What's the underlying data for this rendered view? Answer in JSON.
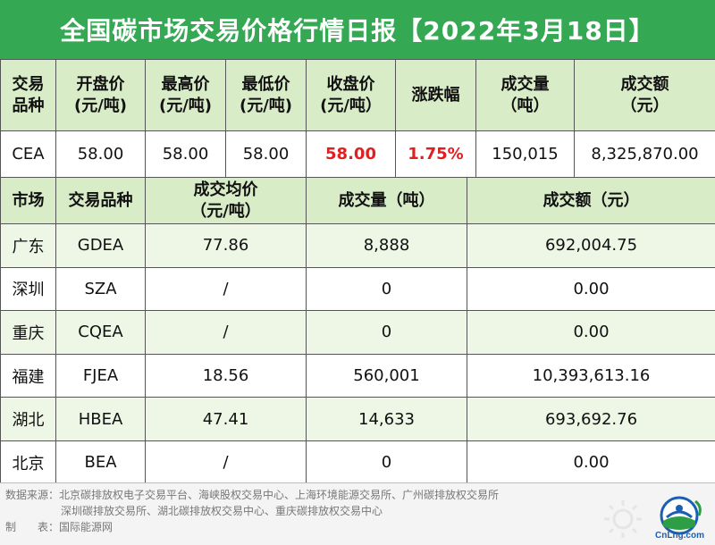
{
  "title": "全国碳市场交易价格行情日报【2022年3月18日】",
  "national": {
    "headers": [
      [
        "交易",
        "品种"
      ],
      [
        "开盘价",
        "(元/吨)"
      ],
      [
        "最高价",
        "(元/吨)"
      ],
      [
        "最低价",
        "(元/吨)"
      ],
      [
        "收盘价",
        "(元/吨）"
      ],
      [
        "涨跌幅",
        ""
      ],
      [
        "成交量",
        "（吨）"
      ],
      [
        "成交额",
        "（元）"
      ]
    ],
    "row": {
      "product": "CEA",
      "open": "58.00",
      "high": "58.00",
      "low": "58.00",
      "close": "58.00",
      "change": "1.75%",
      "volume": "150,015",
      "amount": "8,325,870.00"
    }
  },
  "regional": {
    "headers": {
      "market": "市场",
      "product": "交易品种",
      "avg_price": [
        "成交均价",
        "（元/吨）"
      ],
      "volume": "成交量（吨）",
      "amount": "成交额（元）"
    },
    "rows": [
      {
        "market": "广东",
        "product": "GDEA",
        "avg": "77.86",
        "volume": "8,888",
        "amount": "692,004.75"
      },
      {
        "market": "深圳",
        "product": "SZA",
        "avg": "/",
        "volume": "0",
        "amount": "0.00"
      },
      {
        "market": "重庆",
        "product": "CQEA",
        "avg": "/",
        "volume": "0",
        "amount": "0.00"
      },
      {
        "market": "福建",
        "product": "FJEA",
        "avg": "18.56",
        "volume": "560,001",
        "amount": "10,393,613.16"
      },
      {
        "market": "湖北",
        "product": "HBEA",
        "avg": "47.41",
        "volume": "14,633",
        "amount": "693,692.76"
      },
      {
        "market": "北京",
        "product": "BEA",
        "avg": "/",
        "volume": "0",
        "amount": "0.00"
      }
    ]
  },
  "footer": {
    "source_line1": "数据来源：北京碳排放权电子交易平台、海峡股权交易中心、上海环境能源交易所、广州碳排放权交易所",
    "source_line2": "深圳碳排放交易所、湖北碳排放权交易中心、重庆碳排放权交易中心",
    "maker": "制　　表：国际能源网"
  },
  "logo": {
    "text": "CnLng.com",
    "icon": "cnlng-globe-logo-icon"
  },
  "colors": {
    "title_bg": "#34a853",
    "header_bg": "#d9ecc8",
    "alt_row_bg": "#eef6e6",
    "highlight": "#e02020"
  }
}
